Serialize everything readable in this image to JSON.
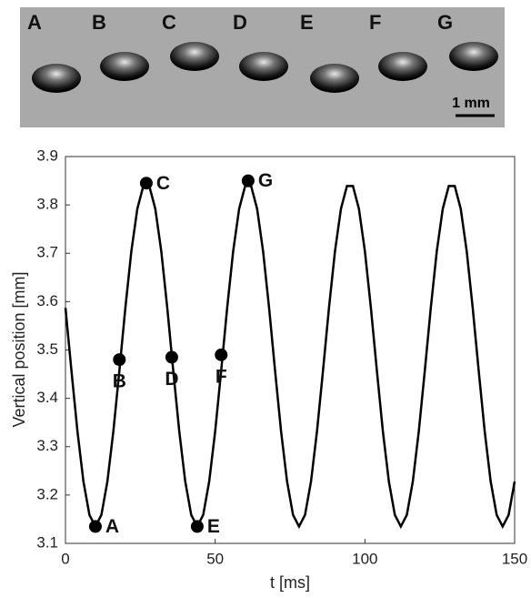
{
  "image_strip": {
    "labels": [
      "A",
      "B",
      "C",
      "D",
      "E",
      "F",
      "G"
    ],
    "scale_bar": "1 mm"
  },
  "chart_data": {
    "type": "line",
    "ylabel": "Vertical position [mm]",
    "xlabel": "t [ms]",
    "x": [
      0,
      2,
      4,
      6,
      8,
      10,
      12,
      14,
      16,
      18,
      20,
      22,
      24,
      26,
      28,
      30,
      32,
      34,
      36,
      38,
      40,
      42,
      44,
      46,
      48,
      50,
      52,
      54,
      56,
      58,
      60,
      62,
      64,
      66,
      68,
      70,
      72,
      74,
      76,
      78,
      80,
      82,
      84,
      86,
      88,
      90,
      92,
      94,
      96,
      98,
      100,
      102,
      104,
      106,
      108,
      110,
      112,
      114,
      116,
      118,
      120,
      122,
      124,
      126,
      128,
      130,
      132,
      134,
      136,
      138,
      140,
      142,
      144,
      146,
      148,
      150
    ],
    "values": [
      3.587,
      3.457,
      3.332,
      3.228,
      3.159,
      3.135,
      3.159,
      3.228,
      3.332,
      3.457,
      3.587,
      3.704,
      3.792,
      3.839,
      3.839,
      3.792,
      3.704,
      3.587,
      3.457,
      3.332,
      3.228,
      3.159,
      3.135,
      3.159,
      3.228,
      3.332,
      3.457,
      3.587,
      3.704,
      3.792,
      3.839,
      3.839,
      3.792,
      3.704,
      3.587,
      3.457,
      3.332,
      3.228,
      3.159,
      3.135,
      3.159,
      3.228,
      3.332,
      3.457,
      3.587,
      3.704,
      3.792,
      3.839,
      3.839,
      3.792,
      3.704,
      3.587,
      3.457,
      3.332,
      3.228,
      3.159,
      3.135,
      3.159,
      3.228,
      3.332,
      3.457,
      3.587,
      3.704,
      3.792,
      3.839,
      3.839,
      3.792,
      3.704,
      3.587,
      3.457,
      3.332,
      3.228,
      3.159,
      3.135,
      3.159,
      3.228
    ],
    "color": "#000000",
    "points": [
      {
        "x": 10,
        "y": 3.135,
        "label": "A"
      },
      {
        "x": 18,
        "y": 3.48,
        "label": "B"
      },
      {
        "x": 27,
        "y": 3.845,
        "label": "C"
      },
      {
        "x": 35.5,
        "y": 3.485,
        "label": "D"
      },
      {
        "x": 44,
        "y": 3.135,
        "label": "E"
      },
      {
        "x": 52,
        "y": 3.49,
        "label": "F"
      },
      {
        "x": 61,
        "y": 3.85,
        "label": "G"
      }
    ],
    "xlim": [
      0,
      150
    ],
    "xticks": [
      0,
      50,
      100,
      150
    ],
    "ylim": [
      3.1,
      3.9
    ],
    "yticks": [
      3.1,
      3.2,
      3.3,
      3.4,
      3.5,
      3.6,
      3.7,
      3.8,
      3.9
    ]
  }
}
